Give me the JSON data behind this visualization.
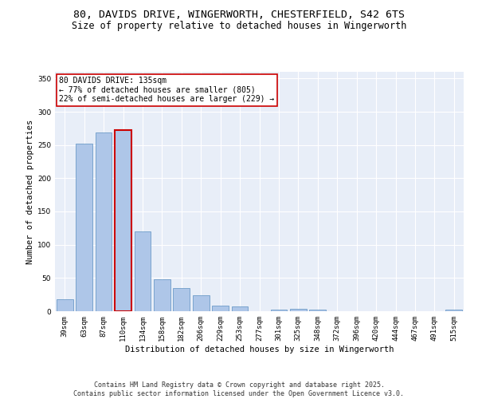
{
  "title_line1": "80, DAVIDS DRIVE, WINGERWORTH, CHESTERFIELD, S42 6TS",
  "title_line2": "Size of property relative to detached houses in Wingerworth",
  "xlabel": "Distribution of detached houses by size in Wingerworth",
  "ylabel": "Number of detached properties",
  "categories": [
    "39sqm",
    "63sqm",
    "87sqm",
    "110sqm",
    "134sqm",
    "158sqm",
    "182sqm",
    "206sqm",
    "229sqm",
    "253sqm",
    "277sqm",
    "301sqm",
    "325sqm",
    "348sqm",
    "372sqm",
    "396sqm",
    "420sqm",
    "444sqm",
    "467sqm",
    "491sqm",
    "515sqm"
  ],
  "values": [
    18,
    252,
    269,
    272,
    120,
    48,
    35,
    24,
    8,
    7,
    0,
    2,
    4,
    3,
    0,
    0,
    0,
    0,
    0,
    0,
    2
  ],
  "bar_color": "#aec6e8",
  "bar_edge_color": "#5a8fc0",
  "highlight_bar_index": 3,
  "highlight_bar_edge_color": "#cc0000",
  "highlight_bar_edge_width": 1.5,
  "annotation_text": "80 DAVIDS DRIVE: 135sqm\n← 77% of detached houses are smaller (805)\n22% of semi-detached houses are larger (229) →",
  "annotation_box_color": "#ffffff",
  "annotation_box_edge_color": "#cc0000",
  "ylim": [
    0,
    360
  ],
  "yticks": [
    0,
    50,
    100,
    150,
    200,
    250,
    300,
    350
  ],
  "background_color": "#e8eef8",
  "grid_color": "#ffffff",
  "footer_text": "Contains HM Land Registry data © Crown copyright and database right 2025.\nContains public sector information licensed under the Open Government Licence v3.0.",
  "title_fontsize": 9.5,
  "subtitle_fontsize": 8.5,
  "axis_label_fontsize": 7.5,
  "tick_fontsize": 6.5,
  "annotation_fontsize": 7.0,
  "footer_fontsize": 6.0,
  "fig_facecolor": "#ffffff"
}
